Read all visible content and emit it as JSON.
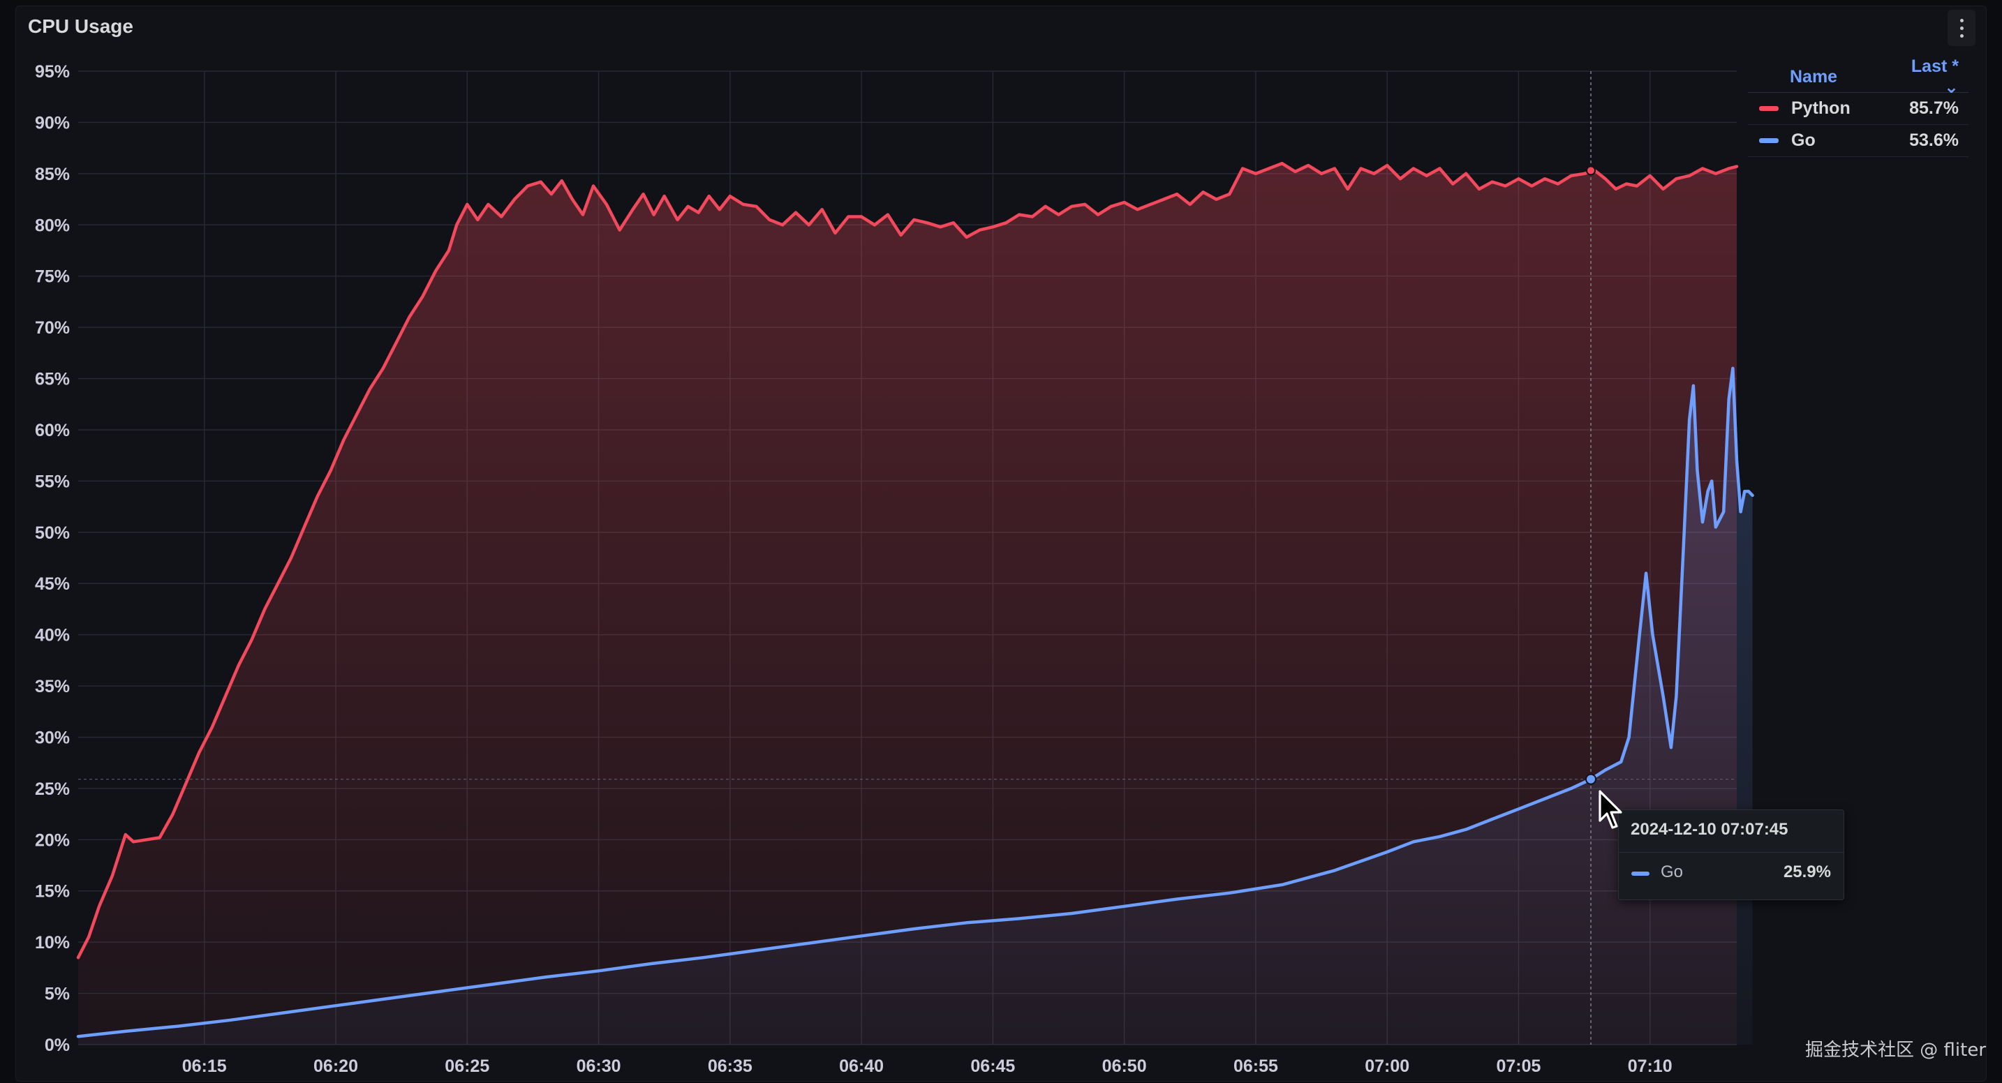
{
  "panel": {
    "title": "CPU Usage"
  },
  "legend": {
    "header_name": "Name",
    "header_last": "Last * ⌄",
    "rows": [
      {
        "name": "Python",
        "value": "85.7%",
        "color": "#f2495c"
      },
      {
        "name": "Go",
        "value": "53.6%",
        "color": "#6e9fff"
      }
    ]
  },
  "tooltip": {
    "time": "2024-12-10 07:07:45",
    "series": "Go",
    "value": "25.9%",
    "color": "#6e9fff"
  },
  "watermark": "掘金技术社区 @ fliter",
  "icons": {
    "menu": "more-vertical-icon",
    "cursor": "mouse-pointer-icon"
  },
  "chart_data": {
    "type": "area",
    "x_unit": "minutes past 06:00",
    "xlim": [
      10.2,
      73.3
    ],
    "ylim": [
      0,
      95
    ],
    "y_ticks": [
      "0%",
      "5%",
      "10%",
      "15%",
      "20%",
      "25%",
      "30%",
      "35%",
      "40%",
      "45%",
      "50%",
      "55%",
      "60%",
      "65%",
      "70%",
      "75%",
      "80%",
      "85%",
      "90%",
      "95%"
    ],
    "x_ticks": [
      {
        "t": 15,
        "label": "06:15"
      },
      {
        "t": 20,
        "label": "06:20"
      },
      {
        "t": 25,
        "label": "06:25"
      },
      {
        "t": 30,
        "label": "06:30"
      },
      {
        "t": 35,
        "label": "06:35"
      },
      {
        "t": 40,
        "label": "06:40"
      },
      {
        "t": 45,
        "label": "06:45"
      },
      {
        "t": 50,
        "label": "06:50"
      },
      {
        "t": 55,
        "label": "06:55"
      },
      {
        "t": 60,
        "label": "07:00"
      },
      {
        "t": 65,
        "label": "07:05"
      },
      {
        "t": 70,
        "label": "07:10"
      }
    ],
    "grid": true,
    "legend_position": "top-right",
    "hover_time": 67.75,
    "series": [
      {
        "name": "Python",
        "color": "#f2495c",
        "points": [
          [
            10.2,
            8.5
          ],
          [
            10.6,
            10.5
          ],
          [
            11.0,
            13.5
          ],
          [
            11.5,
            16.5
          ],
          [
            12.0,
            20.5
          ],
          [
            12.3,
            19.8
          ],
          [
            12.8,
            20.0
          ],
          [
            13.3,
            20.2
          ],
          [
            13.8,
            22.5
          ],
          [
            14.3,
            25.5
          ],
          [
            14.8,
            28.5
          ],
          [
            15.3,
            31.0
          ],
          [
            15.8,
            34.0
          ],
          [
            16.3,
            37.0
          ],
          [
            16.8,
            39.5
          ],
          [
            17.3,
            42.5
          ],
          [
            17.8,
            45.0
          ],
          [
            18.3,
            47.5
          ],
          [
            18.8,
            50.5
          ],
          [
            19.3,
            53.5
          ],
          [
            19.8,
            56.0
          ],
          [
            20.3,
            59.0
          ],
          [
            20.8,
            61.5
          ],
          [
            21.3,
            64.0
          ],
          [
            21.8,
            66.0
          ],
          [
            22.3,
            68.5
          ],
          [
            22.8,
            71.0
          ],
          [
            23.3,
            73.0
          ],
          [
            23.8,
            75.5
          ],
          [
            24.3,
            77.5
          ],
          [
            24.6,
            80.0
          ],
          [
            25.0,
            82.0
          ],
          [
            25.4,
            80.5
          ],
          [
            25.8,
            82.0
          ],
          [
            26.3,
            80.8
          ],
          [
            26.8,
            82.5
          ],
          [
            27.3,
            83.8
          ],
          [
            27.8,
            84.2
          ],
          [
            28.2,
            83.0
          ],
          [
            28.6,
            84.3
          ],
          [
            29.0,
            82.5
          ],
          [
            29.4,
            81.0
          ],
          [
            29.8,
            83.8
          ],
          [
            30.3,
            82.0
          ],
          [
            30.8,
            79.5
          ],
          [
            31.3,
            81.5
          ],
          [
            31.7,
            83.0
          ],
          [
            32.1,
            81.0
          ],
          [
            32.5,
            82.8
          ],
          [
            33.0,
            80.5
          ],
          [
            33.4,
            81.8
          ],
          [
            33.8,
            81.2
          ],
          [
            34.2,
            82.8
          ],
          [
            34.6,
            81.5
          ],
          [
            35.0,
            82.8
          ],
          [
            35.5,
            82.0
          ],
          [
            36.0,
            81.8
          ],
          [
            36.5,
            80.5
          ],
          [
            37.0,
            80.0
          ],
          [
            37.5,
            81.2
          ],
          [
            38.0,
            80.0
          ],
          [
            38.5,
            81.5
          ],
          [
            39.0,
            79.2
          ],
          [
            39.5,
            80.8
          ],
          [
            40.0,
            80.8
          ],
          [
            40.5,
            80.0
          ],
          [
            41.0,
            81.0
          ],
          [
            41.5,
            79.0
          ],
          [
            42.0,
            80.5
          ],
          [
            42.5,
            80.2
          ],
          [
            43.0,
            79.8
          ],
          [
            43.5,
            80.2
          ],
          [
            44.0,
            78.8
          ],
          [
            44.5,
            79.5
          ],
          [
            45.0,
            79.8
          ],
          [
            45.5,
            80.2
          ],
          [
            46.0,
            81.0
          ],
          [
            46.5,
            80.8
          ],
          [
            47.0,
            81.8
          ],
          [
            47.5,
            81.0
          ],
          [
            48.0,
            81.8
          ],
          [
            48.5,
            82.0
          ],
          [
            49.0,
            81.0
          ],
          [
            49.5,
            81.8
          ],
          [
            50.0,
            82.2
          ],
          [
            50.5,
            81.5
          ],
          [
            51.0,
            82.0
          ],
          [
            51.5,
            82.5
          ],
          [
            52.0,
            83.0
          ],
          [
            52.5,
            82.0
          ],
          [
            53.0,
            83.2
          ],
          [
            53.5,
            82.5
          ],
          [
            54.0,
            83.0
          ],
          [
            54.5,
            85.5
          ],
          [
            55.0,
            85.0
          ],
          [
            55.5,
            85.5
          ],
          [
            56.0,
            86.0
          ],
          [
            56.5,
            85.2
          ],
          [
            57.0,
            85.8
          ],
          [
            57.5,
            85.0
          ],
          [
            58.0,
            85.5
          ],
          [
            58.5,
            83.5
          ],
          [
            59.0,
            85.5
          ],
          [
            59.5,
            85.0
          ],
          [
            60.0,
            85.8
          ],
          [
            60.5,
            84.5
          ],
          [
            61.0,
            85.5
          ],
          [
            61.5,
            84.8
          ],
          [
            62.0,
            85.5
          ],
          [
            62.5,
            84.0
          ],
          [
            63.0,
            85.0
          ],
          [
            63.5,
            83.5
          ],
          [
            64.0,
            84.2
          ],
          [
            64.5,
            83.8
          ],
          [
            65.0,
            84.5
          ],
          [
            65.5,
            83.8
          ],
          [
            66.0,
            84.5
          ],
          [
            66.5,
            84.0
          ],
          [
            67.0,
            84.8
          ],
          [
            67.5,
            85.0
          ],
          [
            67.9,
            85.3
          ],
          [
            68.3,
            84.5
          ],
          [
            68.7,
            83.5
          ],
          [
            69.1,
            84.0
          ],
          [
            69.5,
            83.8
          ],
          [
            70.0,
            84.8
          ],
          [
            70.5,
            83.5
          ],
          [
            71.0,
            84.5
          ],
          [
            71.5,
            84.8
          ],
          [
            72.0,
            85.5
          ],
          [
            72.5,
            85.0
          ],
          [
            73.0,
            85.5
          ],
          [
            73.3,
            85.7
          ]
        ]
      },
      {
        "name": "Go",
        "color": "#6e9fff",
        "points": [
          [
            10.2,
            0.8
          ],
          [
            12,
            1.3
          ],
          [
            14,
            1.8
          ],
          [
            16,
            2.4
          ],
          [
            18,
            3.1
          ],
          [
            20,
            3.8
          ],
          [
            22,
            4.5
          ],
          [
            24,
            5.2
          ],
          [
            26,
            5.9
          ],
          [
            28,
            6.6
          ],
          [
            30,
            7.2
          ],
          [
            32,
            7.9
          ],
          [
            34,
            8.5
          ],
          [
            36,
            9.2
          ],
          [
            38,
            9.9
          ],
          [
            40,
            10.6
          ],
          [
            42,
            11.3
          ],
          [
            44,
            11.9
          ],
          [
            46,
            12.3
          ],
          [
            48,
            12.8
          ],
          [
            50,
            13.5
          ],
          [
            52,
            14.2
          ],
          [
            54,
            14.8
          ],
          [
            56,
            15.6
          ],
          [
            58,
            17.0
          ],
          [
            60,
            18.8
          ],
          [
            61,
            19.8
          ],
          [
            62,
            20.3
          ],
          [
            63,
            21.0
          ],
          [
            64,
            22.0
          ],
          [
            65,
            23.0
          ],
          [
            66,
            24.0
          ],
          [
            67,
            25.0
          ],
          [
            67.75,
            25.9
          ],
          [
            68.3,
            26.8
          ],
          [
            68.9,
            27.6
          ],
          [
            69.2,
            30.0
          ],
          [
            69.6,
            40.0
          ],
          [
            69.85,
            46.0
          ],
          [
            70.1,
            40.0
          ],
          [
            70.5,
            34.0
          ],
          [
            70.8,
            29.0
          ],
          [
            71.0,
            34.0
          ],
          [
            71.3,
            50.0
          ],
          [
            71.5,
            61.0
          ],
          [
            71.65,
            64.3
          ],
          [
            71.8,
            56.0
          ],
          [
            72.0,
            51.0
          ],
          [
            72.2,
            54.0
          ],
          [
            72.35,
            55.0
          ],
          [
            72.5,
            50.5
          ],
          [
            72.8,
            52.0
          ],
          [
            73.0,
            63.0
          ],
          [
            73.15,
            66.0
          ],
          [
            73.3,
            57.0
          ],
          [
            73.45,
            52.0
          ],
          [
            73.6,
            54.0
          ],
          [
            73.75,
            54.0
          ],
          [
            73.9,
            53.6
          ]
        ]
      }
    ]
  }
}
